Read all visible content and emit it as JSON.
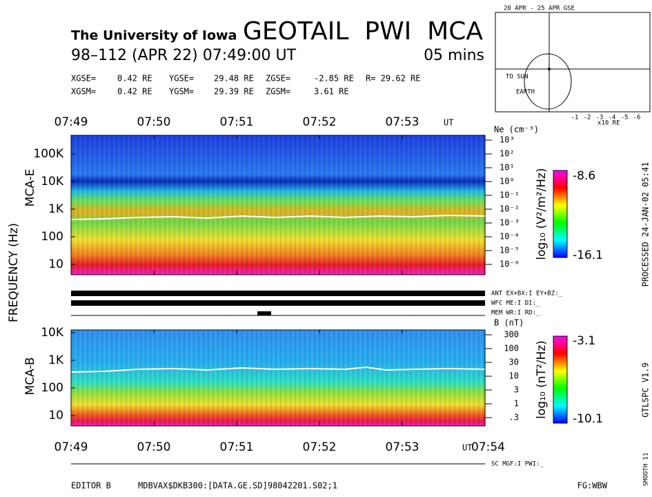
{
  "header": {
    "institution": "The University of Iowa",
    "title": "GEOTAIL  PWI  MCA",
    "date": "98–112 (APR 22) 07:49:00 UT",
    "duration": "05 mins"
  },
  "coords": [
    [
      "XGSE=",
      "0.42 RE",
      "YGSE=",
      "29.48 RE",
      "ZGSE=",
      "-2.85 RE",
      "R= 29.62 RE"
    ],
    [
      "XGSM=",
      "0.42 RE",
      "YGSM=",
      "29.39 RE",
      "ZGSM=",
      "3.61 RE"
    ]
  ],
  "time_labels": [
    "07:49",
    "07:50",
    "07:51",
    "07:52",
    "07:53"
  ],
  "time_unit": "UT",
  "end_time": "07:54",
  "y_axis_label": "FREQUENCY (Hz)",
  "mca_e": {
    "label": "MCA-E",
    "freq_ticks": [
      "100K",
      "10K",
      "1K",
      "100",
      "10"
    ],
    "density_title": "Ne (cm⁻³)",
    "density_ticks": [
      "10³",
      "10²",
      "10¹",
      "10⁰",
      "10⁻¹",
      "10⁻²",
      "10⁻³",
      "10⁻⁴",
      "10⁻⁵",
      "10⁻⁶"
    ],
    "colorbar_label": "log₁₀ (V²/m²/Hz)",
    "colorbar_max": "-8.6",
    "colorbar_min": "-16.1"
  },
  "status": [
    "ANT EX+BX:I EY+BZ:_",
    "WFC ME:I  DI:_",
    "MEM WR:I  RD:_"
  ],
  "mca_b": {
    "label": "MCA-B",
    "freq_ticks": [
      "10K",
      "1K",
      "100",
      "10"
    ],
    "b_title": "B (nT)",
    "b_ticks": [
      "300",
      "100",
      "30",
      "10",
      "3",
      "1",
      ".3"
    ],
    "colorbar_label": "log₁₀ (nT²/Hz)",
    "colorbar_max": "-3.1",
    "colorbar_min": "-10.1"
  },
  "side": {
    "processed": "PROCESSED 24-JAN-02  05:41",
    "version": "GTLSPC   V1.9",
    "smooth": "SMOOTH 11"
  },
  "footer": {
    "sc": "SC MGF:I  PWI:_",
    "editor": "EDITOR B",
    "file": "MDBVAX$DKB300:[DATA.GE.SD]98042201.S02;1",
    "fg": "FG:WBW"
  },
  "orbit": {
    "title": "20 APR - 25 APR  GSE",
    "to_sun": "TO SUN",
    "earth": "EARTH",
    "unit": "x10 RE",
    "x_ticks": [
      "-1",
      "-2",
      "-3",
      "-4",
      "-5",
      "-6"
    ]
  }
}
